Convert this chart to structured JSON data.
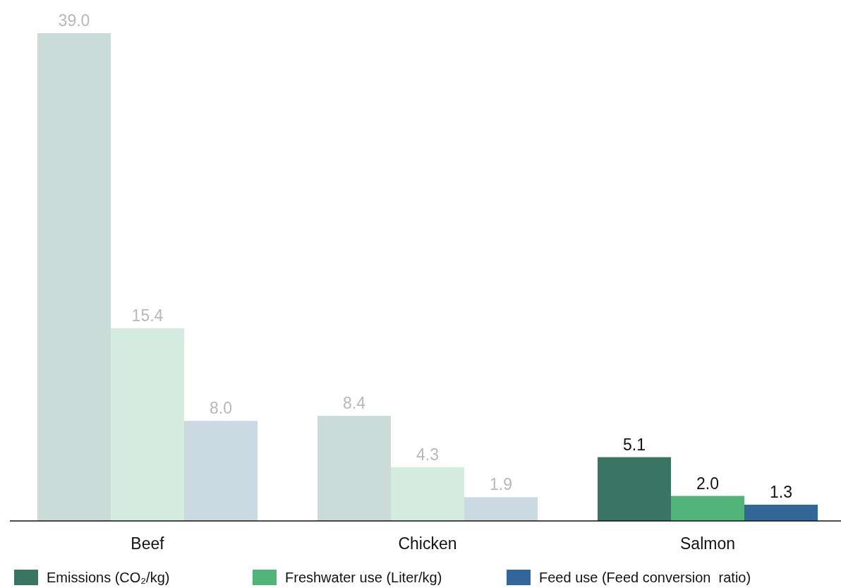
{
  "chart_data": {
    "type": "bar",
    "categories": [
      "Beef",
      "Chicken",
      "Salmon"
    ],
    "series": [
      {
        "name": "Emissions (CO₂/kg)",
        "color": "#3a7563",
        "colors": [
          "#cbdbd8",
          "#cbdbd8",
          "#3a7563"
        ],
        "values": [
          39.0,
          8.4,
          5.1
        ],
        "value_labels": [
          "39.0",
          "8.4",
          "5.1"
        ]
      },
      {
        "name": "Freshwater use (Liter/kg)",
        "color": "#52b478",
        "colors": [
          "#d4ecdf",
          "#d4ecdf",
          "#52b478"
        ],
        "values": [
          15.4,
          4.3,
          2.0
        ],
        "value_labels": [
          "15.4",
          "4.3",
          "2.0"
        ]
      },
      {
        "name": "Feed use (Feed conversion  ratio)",
        "color": "#336699",
        "colors": [
          "#cbd9e3",
          "#cbd9e3",
          "#336699"
        ],
        "values": [
          8.0,
          1.9,
          1.3
        ],
        "value_labels": [
          "8.0",
          "1.9",
          "1.3"
        ]
      }
    ],
    "legend": "bottom"
  }
}
